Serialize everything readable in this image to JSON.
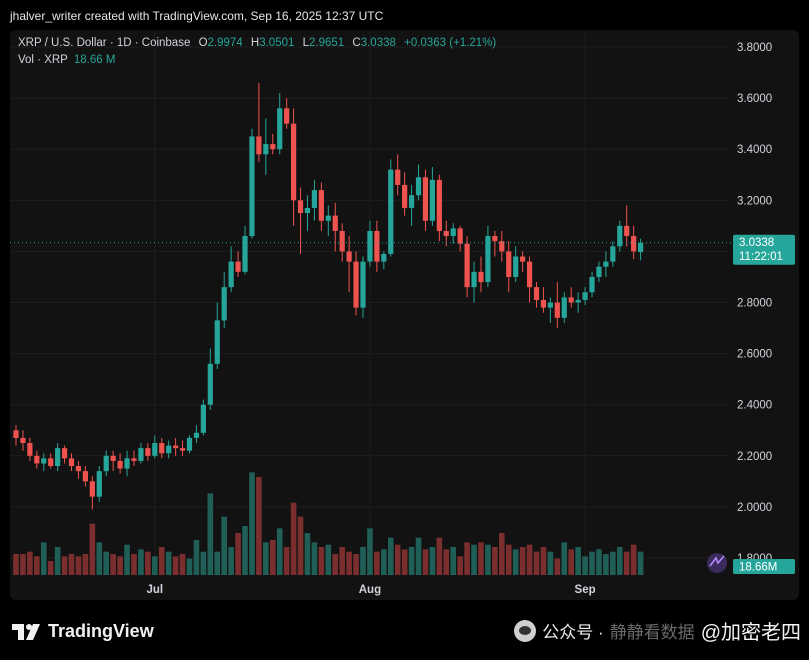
{
  "header": {
    "caption": "jhalver_writer created with TradingView.com, Sep 16, 2025 12:37 UTC"
  },
  "legend": {
    "symbol": "XRP / U.S. Dollar · 1D · Coinbase",
    "o_label": "O",
    "o_value": "2.9974",
    "h_label": "H",
    "h_value": "3.0501",
    "l_label": "L",
    "l_value": "2.9651",
    "c_label": "C",
    "c_value": "3.0338",
    "change": "+0.0363 (+1.21%)",
    "vol_label": "Vol · XRP",
    "vol_value": "18.66 M"
  },
  "price_badge": {
    "price": "3.0338",
    "countdown": "11:22:01"
  },
  "volume_badge": {
    "value": "18.66M"
  },
  "brand": {
    "name": "TradingView"
  },
  "watermark": {
    "prefix": "公众号 ·",
    "faint": "静静看数据",
    "main": "@加密老四"
  },
  "colors": {
    "up": "#26a69a",
    "down": "#ef5350",
    "up_vol": "#1f5f58",
    "down_vol": "#7a2e2e",
    "grid": "#1e1e1e",
    "background": "#121212"
  },
  "chart_data": {
    "type": "candlestick",
    "y_ticks": [
      "3.8000",
      "3.6000",
      "3.4000",
      "3.2000",
      "3.0000",
      "2.8000",
      "2.6000",
      "2.4000",
      "2.2000",
      "2.0000",
      "1.8000"
    ],
    "ylim": [
      1.8,
      3.8
    ],
    "x_ticks": [
      {
        "label": "Jul",
        "index": 20
      },
      {
        "label": "Aug",
        "index": 51
      },
      {
        "label": "Sep",
        "index": 82
      }
    ],
    "last_price": 3.0338,
    "ohlc": [
      [
        2.3,
        2.32,
        2.24,
        2.27
      ],
      [
        2.27,
        2.3,
        2.22,
        2.25
      ],
      [
        2.25,
        2.27,
        2.18,
        2.2
      ],
      [
        2.2,
        2.22,
        2.15,
        2.17
      ],
      [
        2.17,
        2.21,
        2.14,
        2.19
      ],
      [
        2.19,
        2.21,
        2.15,
        2.16
      ],
      [
        2.16,
        2.25,
        2.14,
        2.23
      ],
      [
        2.23,
        2.24,
        2.17,
        2.19
      ],
      [
        2.19,
        2.21,
        2.14,
        2.16
      ],
      [
        2.16,
        2.18,
        2.11,
        2.14
      ],
      [
        2.14,
        2.16,
        2.08,
        2.1
      ],
      [
        2.1,
        2.12,
        1.99,
        2.04
      ],
      [
        2.04,
        2.16,
        2.02,
        2.14
      ],
      [
        2.14,
        2.22,
        2.12,
        2.2
      ],
      [
        2.2,
        2.22,
        2.14,
        2.18
      ],
      [
        2.18,
        2.21,
        2.13,
        2.15
      ],
      [
        2.15,
        2.22,
        2.12,
        2.19
      ],
      [
        2.19,
        2.22,
        2.16,
        2.18
      ],
      [
        2.18,
        2.25,
        2.17,
        2.23
      ],
      [
        2.23,
        2.25,
        2.18,
        2.2
      ],
      [
        2.2,
        2.28,
        2.19,
        2.25
      ],
      [
        2.25,
        2.27,
        2.19,
        2.21
      ],
      [
        2.21,
        2.26,
        2.19,
        2.24
      ],
      [
        2.24,
        2.27,
        2.2,
        2.23
      ],
      [
        2.23,
        2.26,
        2.2,
        2.22
      ],
      [
        2.22,
        2.28,
        2.21,
        2.27
      ],
      [
        2.27,
        2.32,
        2.25,
        2.29
      ],
      [
        2.29,
        2.42,
        2.28,
        2.4
      ],
      [
        2.4,
        2.62,
        2.38,
        2.56
      ],
      [
        2.56,
        2.8,
        2.54,
        2.73
      ],
      [
        2.73,
        2.92,
        2.7,
        2.86
      ],
      [
        2.86,
        3.02,
        2.84,
        2.96
      ],
      [
        2.96,
        3.0,
        2.9,
        2.92
      ],
      [
        2.92,
        3.1,
        2.91,
        3.06
      ],
      [
        3.06,
        3.48,
        3.05,
        3.45
      ],
      [
        3.45,
        3.66,
        3.35,
        3.38
      ],
      [
        3.38,
        3.52,
        3.3,
        3.42
      ],
      [
        3.42,
        3.46,
        3.38,
        3.4
      ],
      [
        3.4,
        3.62,
        3.38,
        3.56
      ],
      [
        3.56,
        3.6,
        3.48,
        3.5
      ],
      [
        3.5,
        3.56,
        3.1,
        3.2
      ],
      [
        3.2,
        3.25,
        2.99,
        3.15
      ],
      [
        3.15,
        3.22,
        3.08,
        3.17
      ],
      [
        3.17,
        3.28,
        3.12,
        3.24
      ],
      [
        3.24,
        3.27,
        3.08,
        3.12
      ],
      [
        3.12,
        3.18,
        3.06,
        3.14
      ],
      [
        3.14,
        3.19,
        3.0,
        3.08
      ],
      [
        3.08,
        3.11,
        2.96,
        3.0
      ],
      [
        3.0,
        3.06,
        2.84,
        2.96
      ],
      [
        2.96,
        3.0,
        2.75,
        2.78
      ],
      [
        2.78,
        2.98,
        2.74,
        2.96
      ],
      [
        2.96,
        3.12,
        2.94,
        3.08
      ],
      [
        3.08,
        3.12,
        2.92,
        2.96
      ],
      [
        2.96,
        3.0,
        2.93,
        2.99
      ],
      [
        2.99,
        3.36,
        2.98,
        3.32
      ],
      [
        3.32,
        3.38,
        3.22,
        3.26
      ],
      [
        3.26,
        3.31,
        3.14,
        3.17
      ],
      [
        3.17,
        3.26,
        3.1,
        3.22
      ],
      [
        3.22,
        3.34,
        3.2,
        3.29
      ],
      [
        3.29,
        3.32,
        3.08,
        3.12
      ],
      [
        3.12,
        3.33,
        3.1,
        3.28
      ],
      [
        3.28,
        3.3,
        3.04,
        3.08
      ],
      [
        3.08,
        3.12,
        3.02,
        3.06
      ],
      [
        3.06,
        3.11,
        3.03,
        3.09
      ],
      [
        3.09,
        3.1,
        3.0,
        3.03
      ],
      [
        3.03,
        3.06,
        2.82,
        2.86
      ],
      [
        2.86,
        2.96,
        2.8,
        2.92
      ],
      [
        2.92,
        2.98,
        2.84,
        2.88
      ],
      [
        2.88,
        3.1,
        2.86,
        3.06
      ],
      [
        3.06,
        3.08,
        2.98,
        3.04
      ],
      [
        3.04,
        3.08,
        2.96,
        3.0
      ],
      [
        3.0,
        3.04,
        2.84,
        2.9
      ],
      [
        2.9,
        3.02,
        2.88,
        2.98
      ],
      [
        2.98,
        3.0,
        2.92,
        2.96
      ],
      [
        2.96,
        2.98,
        2.8,
        2.86
      ],
      [
        2.86,
        2.88,
        2.78,
        2.81
      ],
      [
        2.81,
        2.86,
        2.76,
        2.78
      ],
      [
        2.78,
        2.82,
        2.72,
        2.8
      ],
      [
        2.8,
        2.88,
        2.7,
        2.74
      ],
      [
        2.74,
        2.84,
        2.72,
        2.82
      ],
      [
        2.82,
        2.86,
        2.78,
        2.8
      ],
      [
        2.8,
        2.84,
        2.76,
        2.81
      ],
      [
        2.81,
        2.86,
        2.79,
        2.84
      ],
      [
        2.84,
        2.92,
        2.82,
        2.9
      ],
      [
        2.9,
        2.96,
        2.88,
        2.94
      ],
      [
        2.94,
        3.0,
        2.9,
        2.96
      ],
      [
        2.96,
        3.04,
        2.94,
        3.02
      ],
      [
        3.02,
        3.12,
        3.0,
        3.1
      ],
      [
        3.1,
        3.18,
        3.02,
        3.06
      ],
      [
        3.06,
        3.1,
        2.97,
        3.0
      ],
      [
        2.9974,
        3.0501,
        2.9651,
        3.0338
      ]
    ],
    "volume_max": 60,
    "volume": [
      9,
      9,
      10,
      8,
      14,
      6,
      12,
      8,
      9,
      8,
      9,
      22,
      14,
      10,
      9,
      8,
      13,
      9,
      11,
      10,
      8,
      12,
      10,
      8,
      9,
      7,
      15,
      10,
      35,
      10,
      25,
      12,
      18,
      21,
      44,
      42,
      14,
      15,
      20,
      12,
      31,
      25,
      18,
      14,
      12,
      13,
      9,
      12,
      10,
      9,
      12,
      20,
      10,
      11,
      16,
      13,
      11,
      12,
      16,
      11,
      12,
      16,
      11,
      12,
      8,
      14,
      13,
      14,
      13,
      12,
      18,
      13,
      11,
      12,
      13,
      10,
      12,
      10,
      7,
      14,
      11,
      12,
      8,
      10,
      11,
      9,
      10,
      12,
      10,
      13,
      10
    ]
  }
}
